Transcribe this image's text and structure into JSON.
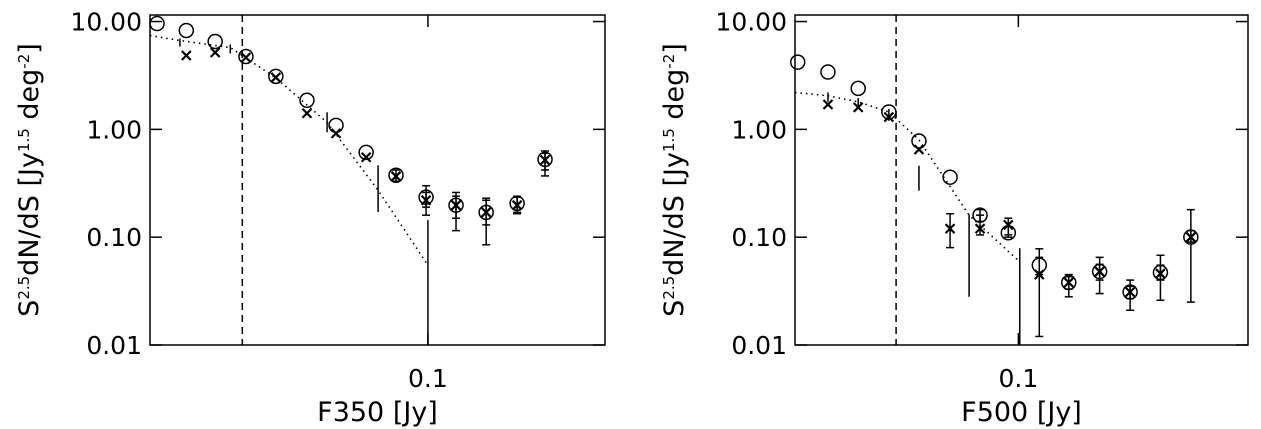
{
  "chart_data": [
    {
      "type": "scatter",
      "xlog": true,
      "ylog": true,
      "color": "#000000",
      "xlabel": "F350 [Jy]",
      "ylabel": [
        "S",
        "2.5",
        "dN/dS [Jy",
        "1.5",
        " deg",
        "-2",
        "]"
      ],
      "xlim": [
        0.014,
        0.35
      ],
      "ylim": [
        0.01,
        11.5
      ],
      "xticks": [
        0.1
      ],
      "yticks": [
        {
          "value": 10,
          "label": "10.00"
        },
        {
          "value": 1,
          "label": "1.00"
        },
        {
          "value": 0.1,
          "label": "0.10"
        },
        0.01
      ],
      "vline": 0.0269,
      "series": [
        {
          "marker": "circle",
          "x": [
            0.01472,
            0.0181,
            0.0222,
            0.0276,
            0.0341,
            0.0425,
            0.0522,
            0.0646,
            0.0798,
            0.0987,
            0.122,
            0.151,
            0.188,
            0.229
          ],
          "values": [
            9.58,
            8.26,
            6.53,
            4.74,
            3.1,
            1.86,
            1.09,
            0.612,
            0.375,
            0.235,
            0.198,
            0.17,
            0.206,
            0.527
          ],
          "low": [
            null,
            null,
            null,
            null,
            null,
            null,
            null,
            null,
            0.33,
            0.19,
            0.15,
            0.13,
            0.17,
            0.42
          ],
          "high": [
            null,
            null,
            null,
            null,
            null,
            null,
            null,
            null,
            0.42,
            0.26,
            0.24,
            0.22,
            0.24,
            0.63
          ]
        },
        {
          "marker": "cross",
          "x": [
            0.0181,
            0.0222,
            0.0276,
            0.0341,
            0.0425,
            0.0522,
            0.0646,
            0.0798,
            0.0987,
            0.122,
            0.151,
            0.188,
            0.229
          ],
          "values": [
            4.84,
            5.16,
            4.64,
            3.03,
            1.41,
            0.918,
            0.551,
            0.367,
            0.22,
            0.198,
            0.17,
            0.198,
            0.52
          ],
          "low": [
            null,
            null,
            null,
            null,
            null,
            null,
            null,
            null,
            0.16,
            0.115,
            0.085,
            0.165,
            0.37
          ],
          "high": [
            null,
            null,
            null,
            null,
            null,
            null,
            null,
            null,
            0.3,
            0.26,
            0.23,
            0.235,
            0.6
          ]
        },
        {
          "marker": "dotted-line",
          "x": [
            0.014,
            0.0173,
            0.0247,
            0.0341,
            0.049,
            0.0703,
            0.1
          ],
          "values": [
            7.42,
            6.67,
            5.74,
            3.0,
            1.16,
            0.272,
            0.055
          ],
          "low": [
            null,
            5.87,
            5.06,
            null,
            0.94,
            0.171,
            0.01
          ],
          "high": [
            null,
            6.96,
            6.12,
            null,
            1.44,
            0.464,
            0.144
          ]
        }
      ]
    },
    {
      "type": "scatter",
      "xlog": true,
      "ylog": true,
      "color": "#000000",
      "xlabel": "F500 [Jy]",
      "ylabel": [
        "S",
        "2.5",
        "dN/dS [Jy",
        "1.5",
        " deg",
        "-2",
        "]"
      ],
      "xlim": [
        0.0205,
        0.51
      ],
      "ylim": [
        0.01,
        11.5
      ],
      "xticks": [
        0.1
      ],
      "yticks": [
        {
          "value": 10,
          "label": "10.00"
        },
        {
          "value": 1,
          "label": "1.00"
        },
        {
          "value": 0.1,
          "label": "0.10"
        },
        0.01
      ],
      "vline": 0.042,
      "series": [
        {
          "marker": "circle",
          "x": [
            0.0209,
            0.0259,
            0.0321,
            0.0399,
            0.0494,
            0.0616,
            0.0762,
            0.0931,
            0.116,
            0.143,
            0.178,
            0.221,
            0.274,
            0.34
          ],
          "values": [
            4.2,
            3.4,
            2.4,
            1.45,
            0.78,
            0.36,
            0.16,
            0.11,
            0.055,
            0.038,
            0.048,
            0.031,
            0.047,
            0.1
          ],
          "low": [
            null,
            null,
            null,
            null,
            null,
            null,
            0.14,
            0.1,
            0.045,
            0.033,
            0.04,
            0.027,
            0.04,
            0.09
          ],
          "high": [
            null,
            null,
            null,
            null,
            null,
            null,
            0.18,
            0.125,
            0.065,
            0.043,
            0.056,
            0.035,
            0.055,
            0.115
          ]
        },
        {
          "marker": "cross",
          "x": [
            0.0259,
            0.0321,
            0.0399,
            0.0494,
            0.0616,
            0.0762,
            0.0931,
            0.116,
            0.143,
            0.178,
            0.221,
            0.274,
            0.34
          ],
          "values": [
            1.7,
            1.6,
            1.3,
            0.65,
            0.12,
            0.12,
            0.13,
            0.045,
            0.038,
            0.048,
            0.031,
            0.046,
            0.1
          ],
          "low": [
            null,
            null,
            null,
            null,
            0.08,
            0.105,
            0.105,
            0.012,
            0.028,
            0.03,
            0.021,
            0.026,
            0.025
          ],
          "high": [
            null,
            null,
            null,
            null,
            0.165,
            0.16,
            0.15,
            0.078,
            0.045,
            0.065,
            0.04,
            0.068,
            0.18
          ]
        },
        {
          "marker": "dotted-line",
          "x": [
            0.0205,
            0.0259,
            0.0321,
            0.0399,
            0.0494,
            0.0705,
            0.101
          ],
          "values": [
            2.2,
            2.05,
            1.8,
            1.45,
            0.8,
            0.16,
            0.059
          ],
          "low": [
            null,
            1.8,
            1.6,
            1.2,
            0.27,
            0.028,
            0.01
          ],
          "high": [
            null,
            2.2,
            1.95,
            1.55,
            0.46,
            0.163,
            0.079
          ]
        }
      ]
    }
  ]
}
